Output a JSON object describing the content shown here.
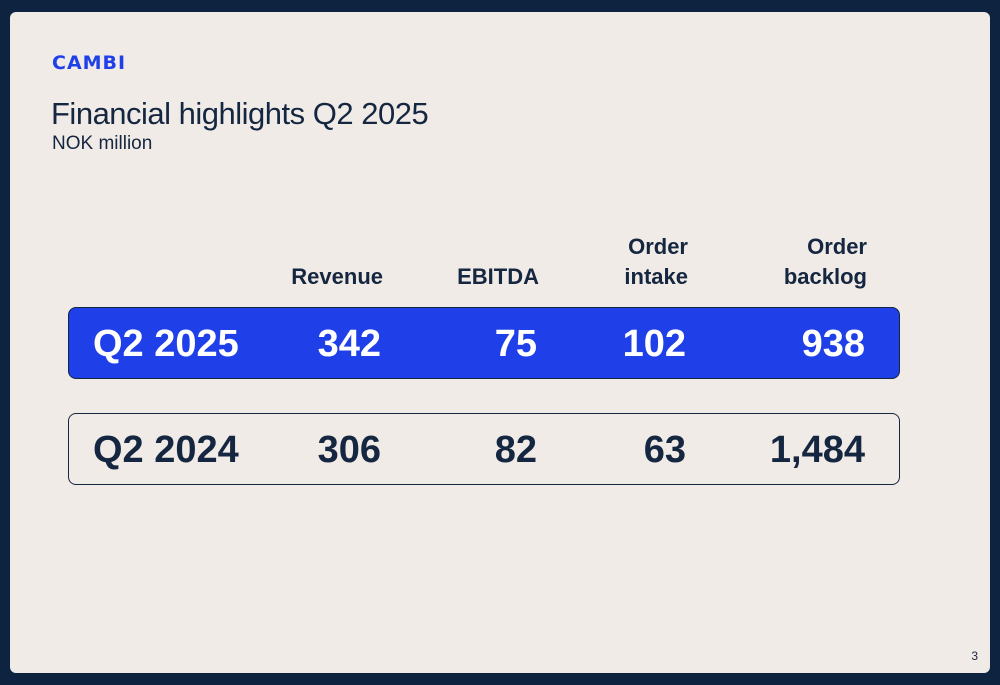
{
  "brand": {
    "logo_text": "CAMBI"
  },
  "slide": {
    "title": "Financial highlights Q2 2025",
    "subtitle": "NOK million",
    "page_number": "3"
  },
  "table": {
    "columns": [
      {
        "line1": "",
        "line2": "Revenue"
      },
      {
        "line1": "",
        "line2": "EBITDA"
      },
      {
        "line1": "Order",
        "line2": "intake"
      },
      {
        "line1": "Order",
        "line2": "backlog"
      }
    ],
    "rows": [
      {
        "label": "Q2 2025",
        "values": [
          "342",
          "75",
          "102",
          "938"
        ],
        "highlight_color": "#1f3fe8"
      },
      {
        "label": "Q2 2024",
        "values": [
          "306",
          "82",
          "63",
          "1,484"
        ]
      }
    ]
  }
}
